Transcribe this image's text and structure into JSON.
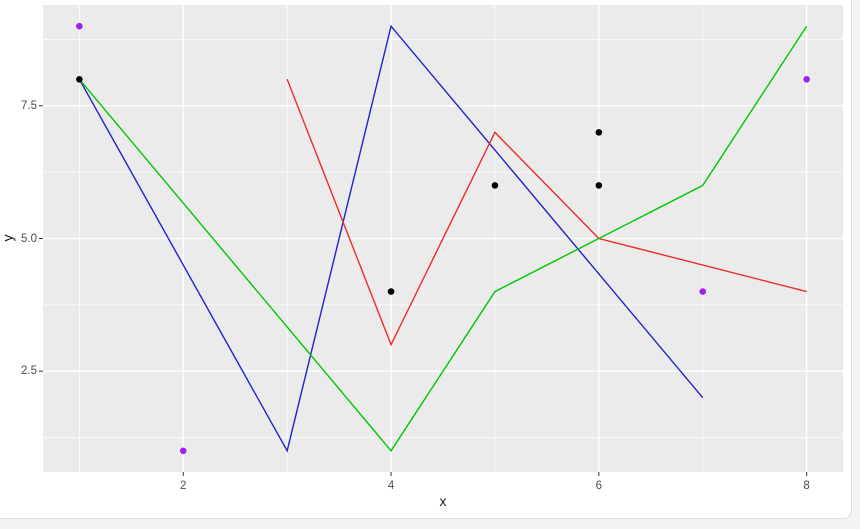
{
  "figure": {
    "outer_background": "#F1F3F5",
    "pane_background": "#FFFFFF",
    "pane_border_color": "#D7DEE6",
    "panel_background": "#EBEBEB",
    "grid_color": "#FFFFFF",
    "tick_mark_color": "#333333",
    "tick_label_color": "#4D4D4D",
    "axis_title_color": "#1A1A1A"
  },
  "chart_data": {
    "type": "line",
    "title": "",
    "xlabel": "x",
    "ylabel": "y",
    "grid": true,
    "legend": false,
    "x_domain": [
      0.65,
      8.35
    ],
    "y_domain": [
      0.6,
      9.4
    ],
    "x_major_ticks": [
      2,
      4,
      6,
      8
    ],
    "x_tick_labels": [
      "2",
      "4",
      "6",
      "8"
    ],
    "x_minor_ticks": [
      1,
      3,
      5,
      7
    ],
    "y_major_ticks": [
      2.5,
      5.0,
      7.5
    ],
    "y_tick_labels": [
      "2.5",
      "5.0",
      "7.5"
    ],
    "y_minor_ticks": [
      1.25,
      3.75,
      6.25,
      8.75
    ],
    "series": [
      {
        "name": "blue-line",
        "color": "#2222CC",
        "points": [
          [
            1,
            8
          ],
          [
            3,
            1
          ],
          [
            4,
            9
          ],
          [
            7,
            2
          ]
        ]
      },
      {
        "name": "red-line",
        "color": "#EE2C2C",
        "points": [
          [
            3,
            8
          ],
          [
            4,
            3
          ],
          [
            5,
            7
          ],
          [
            6,
            5
          ],
          [
            8,
            4
          ]
        ]
      },
      {
        "name": "green-line",
        "color": "#00C700",
        "points": [
          [
            1,
            8
          ],
          [
            4,
            1
          ],
          [
            5,
            4
          ],
          [
            7,
            6
          ],
          [
            8,
            9
          ]
        ]
      }
    ],
    "scatter": [
      {
        "name": "black-points",
        "color": "#000000",
        "points": [
          [
            1,
            8
          ],
          [
            4,
            4
          ],
          [
            5,
            6
          ],
          [
            6,
            6
          ],
          [
            6,
            7
          ]
        ]
      },
      {
        "name": "purple-points",
        "color": "#A020F0",
        "points": [
          [
            1,
            9
          ],
          [
            2,
            1
          ],
          [
            7,
            4
          ],
          [
            8,
            8
          ]
        ]
      }
    ]
  }
}
